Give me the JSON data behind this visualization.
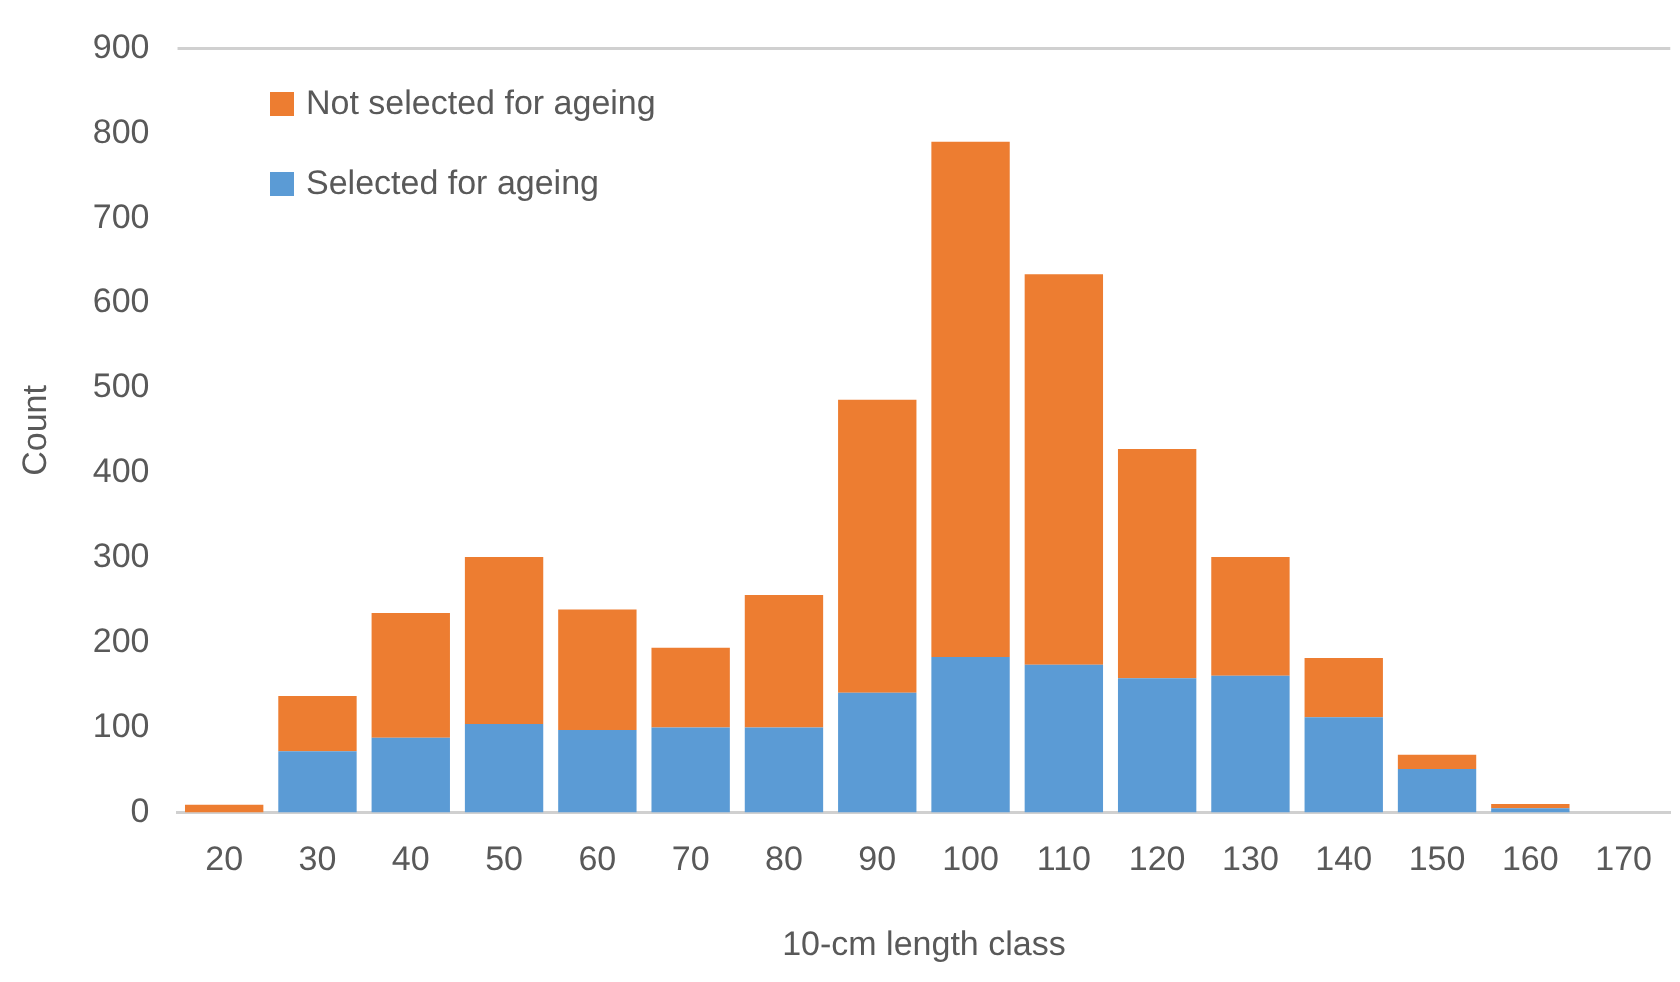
{
  "chart_data": {
    "type": "bar",
    "stacked": true,
    "xlabel": "10-cm length class",
    "ylabel": "Count",
    "categories": [
      "20",
      "30",
      "40",
      "50",
      "60",
      "70",
      "80",
      "90",
      "100",
      "110",
      "120",
      "130",
      "140",
      "150",
      "160",
      "170"
    ],
    "series": [
      {
        "name": "Selected for ageing",
        "color": "#5b9bd5",
        "values": [
          0,
          72,
          88,
          104,
          97,
          100,
          100,
          141,
          183,
          174,
          158,
          161,
          112,
          51,
          5,
          0
        ]
      },
      {
        "name": "Not selected for ageing",
        "color": "#ed7d31",
        "values": [
          9,
          65,
          147,
          197,
          142,
          94,
          156,
          345,
          607,
          460,
          270,
          140,
          70,
          17,
          5,
          0
        ]
      }
    ],
    "ylim": [
      0,
      900
    ],
    "yticks": [
      0,
      100,
      200,
      300,
      400,
      500,
      600,
      700,
      800,
      900
    ],
    "grid": false,
    "legend": "top left"
  }
}
